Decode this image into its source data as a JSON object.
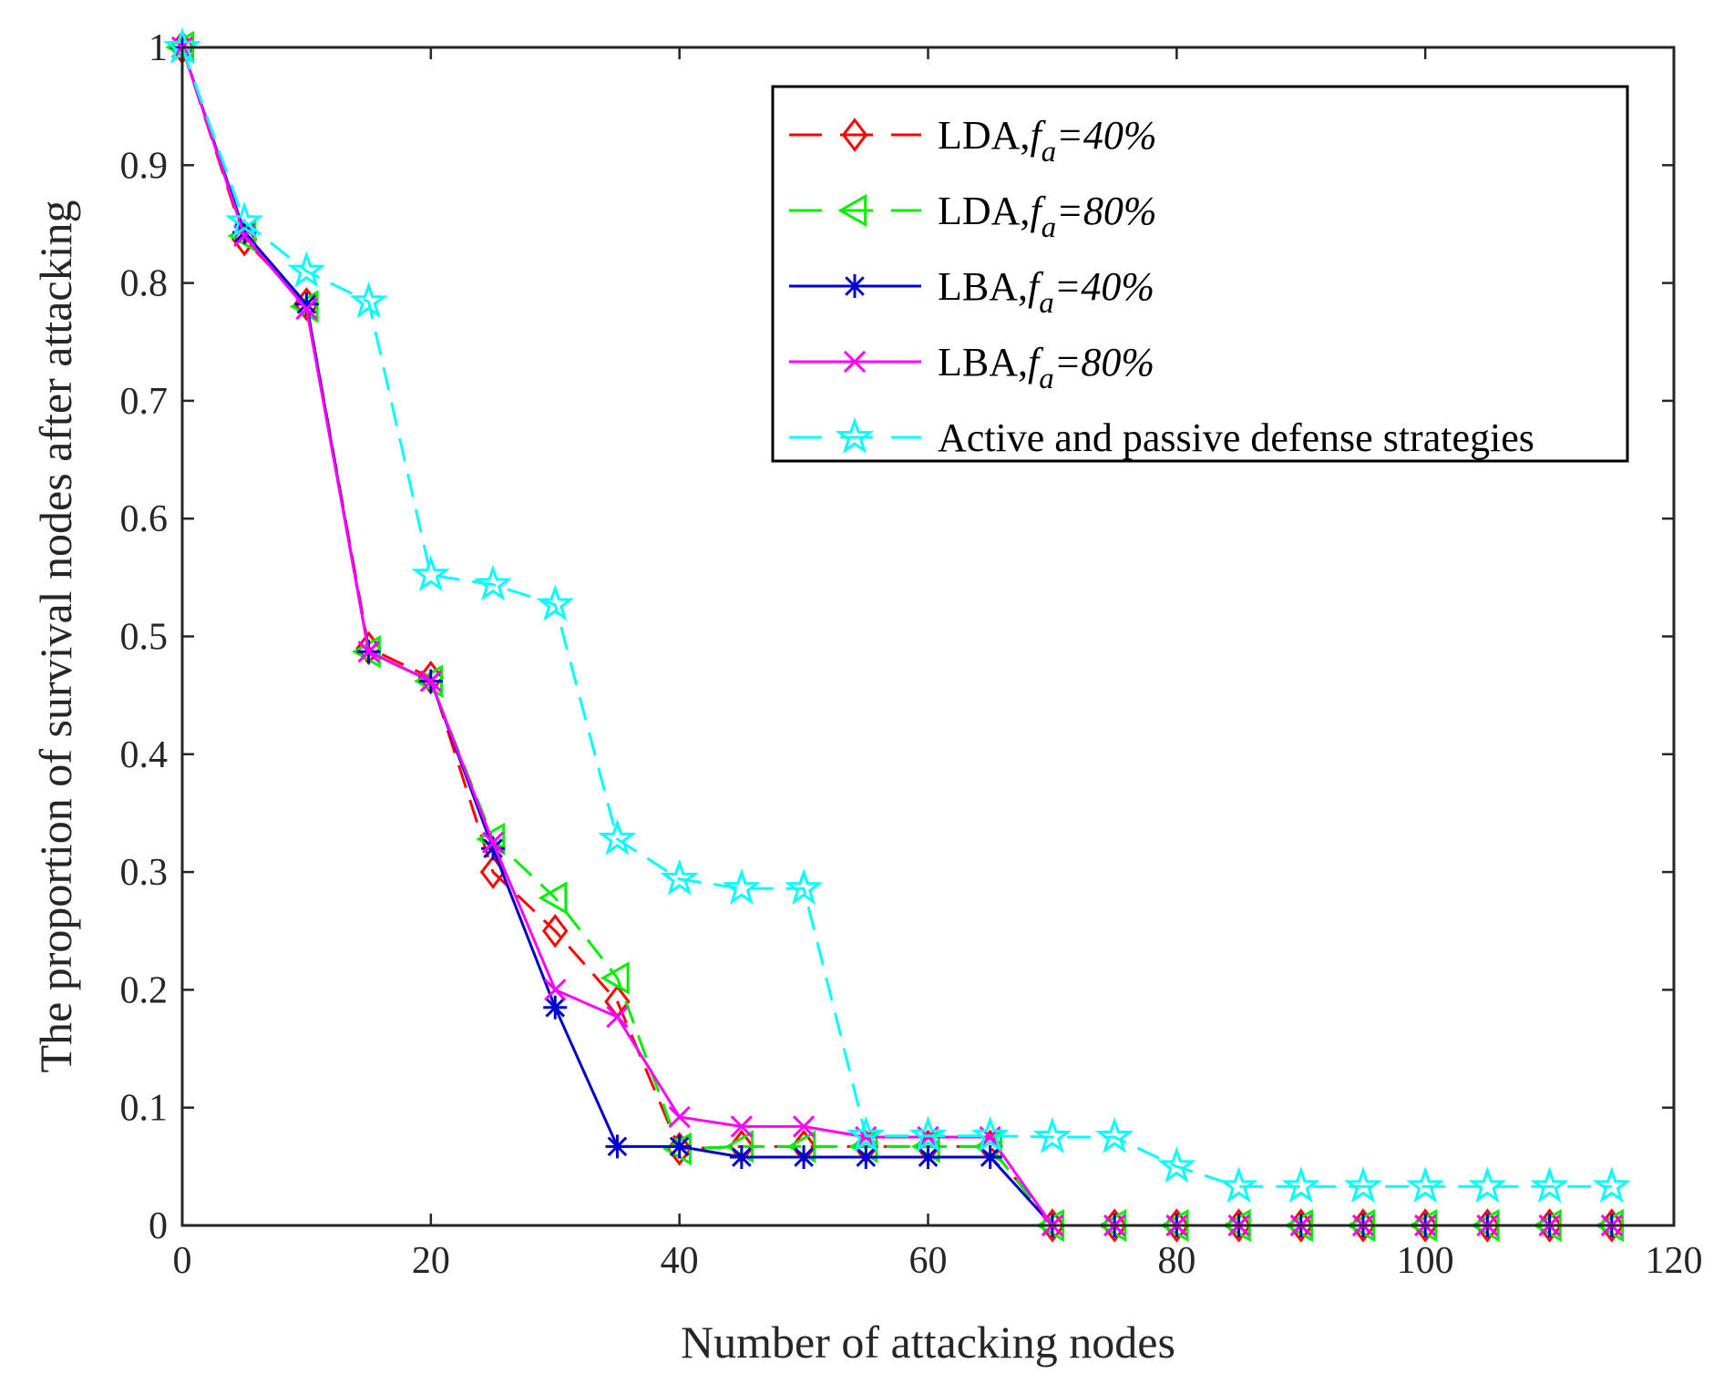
{
  "chart_data": {
    "type": "line",
    "title": "",
    "xlabel": "Number of attacking nodes",
    "ylabel": "The proportion of survival nodes after attacking",
    "xlim": [
      0,
      120
    ],
    "ylim": [
      0,
      1
    ],
    "xticks": [
      0,
      20,
      40,
      60,
      80,
      100,
      120
    ],
    "xtick_labels": [
      "0",
      "20",
      "40",
      "60",
      "80",
      "100",
      "120"
    ],
    "yticks": [
      0,
      0.1,
      0.2,
      0.3,
      0.4,
      0.5,
      0.6,
      0.7,
      0.8,
      0.9,
      1
    ],
    "ytick_labels": [
      "0",
      "0.1",
      "0.2",
      "0.3",
      "0.4",
      "0.5",
      "0.6",
      "0.7",
      "0.8",
      "0.9",
      "1"
    ],
    "grid": false,
    "legend_position": "top-right",
    "x": [
      0,
      5,
      10,
      15,
      20,
      25,
      30,
      35,
      40,
      45,
      50,
      55,
      60,
      65,
      70,
      75,
      80,
      85,
      90,
      95,
      100,
      105,
      110,
      115
    ],
    "series": [
      {
        "name": "LDA,fa=40%",
        "legend_prefix": "LDA,",
        "legend_f": "f",
        "legend_sub": "a",
        "legend_suffix": "=40%",
        "color": "#ff0000",
        "dash": "dashed",
        "marker": "diamond",
        "values": [
          1,
          0.837,
          0.782,
          0.49,
          0.465,
          0.3,
          0.25,
          0.19,
          0.065,
          0.067,
          0.067,
          0.067,
          0.067,
          0.067,
          0,
          0,
          0,
          0,
          0,
          0,
          0,
          0,
          0,
          0
        ]
      },
      {
        "name": "LDA,fa=80%",
        "legend_prefix": "LDA,",
        "legend_f": "f",
        "legend_sub": "a",
        "legend_suffix": "=80%",
        "color": "#00ee00",
        "dash": "dashed",
        "marker": "triangle-left",
        "values": [
          1,
          0.84,
          0.78,
          0.487,
          0.462,
          0.328,
          0.278,
          0.21,
          0.065,
          0.067,
          0.067,
          0.067,
          0.067,
          0.067,
          0,
          0,
          0,
          0,
          0,
          0,
          0,
          0,
          0,
          0
        ]
      },
      {
        "name": "LBA,fa=40%",
        "legend_prefix": "LBA,",
        "legend_f": "f",
        "legend_sub": "a",
        "legend_suffix": "=40%",
        "color": "#0000cc",
        "dash": "solid",
        "marker": "asterisk",
        "values": [
          1,
          0.843,
          0.782,
          0.487,
          0.462,
          0.32,
          0.185,
          0.067,
          0.067,
          0.058,
          0.058,
          0.058,
          0.058,
          0.058,
          0,
          0,
          0,
          0,
          0,
          0,
          0,
          0,
          0,
          0
        ]
      },
      {
        "name": "LBA,fa=80%",
        "legend_prefix": "LBA,",
        "legend_f": "f",
        "legend_sub": "a",
        "legend_suffix": "=80%",
        "color": "#ff00ff",
        "dash": "solid",
        "marker": "x",
        "values": [
          1,
          0.84,
          0.778,
          0.487,
          0.462,
          0.325,
          0.2,
          0.177,
          0.092,
          0.084,
          0.084,
          0.075,
          0.075,
          0.075,
          0,
          0,
          0,
          0,
          0,
          0,
          0,
          0,
          0,
          0
        ]
      },
      {
        "name": "Active and passive defense strategies",
        "legend_prefix": "Active and passive defense strategies",
        "legend_f": "",
        "legend_sub": "",
        "legend_suffix": "",
        "color": "#00ffff",
        "dash": "dashed",
        "marker": "pentagram",
        "values": [
          1,
          0.852,
          0.81,
          0.784,
          0.552,
          0.544,
          0.527,
          0.328,
          0.294,
          0.286,
          0.286,
          0.076,
          0.076,
          0.076,
          0.075,
          0.075,
          0.05,
          0.033,
          0.033,
          0.033,
          0.033,
          0.033,
          0.033,
          0.033
        ]
      }
    ]
  }
}
